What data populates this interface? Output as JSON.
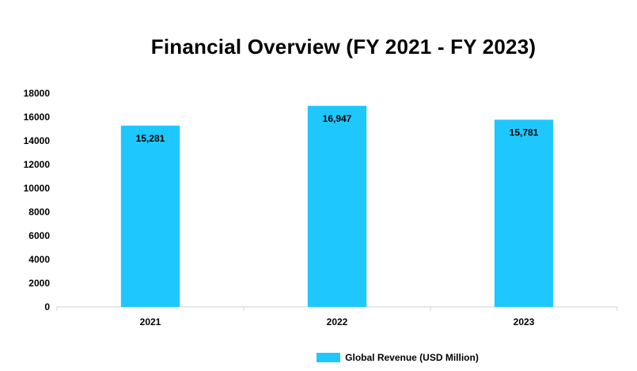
{
  "chart_data": {
    "type": "bar",
    "title": "Financial Overview (FY 2021 - FY 2023)",
    "categories": [
      "2021",
      "2022",
      "2023"
    ],
    "series": [
      {
        "name": "Global Revenue (USD Million)",
        "values": [
          15281,
          16947,
          15781
        ],
        "data_labels": [
          "15,281",
          "16,947",
          "15,781"
        ],
        "color": "#1EC8FF"
      }
    ],
    "yticks": [
      "0",
      "2000",
      "4000",
      "6000",
      "8000",
      "10000",
      "12000",
      "14000",
      "16000",
      "18000"
    ],
    "ylim": [
      0,
      18000
    ],
    "xlabel": "",
    "ylabel": "",
    "grid": false,
    "legend_position": "bottom"
  }
}
